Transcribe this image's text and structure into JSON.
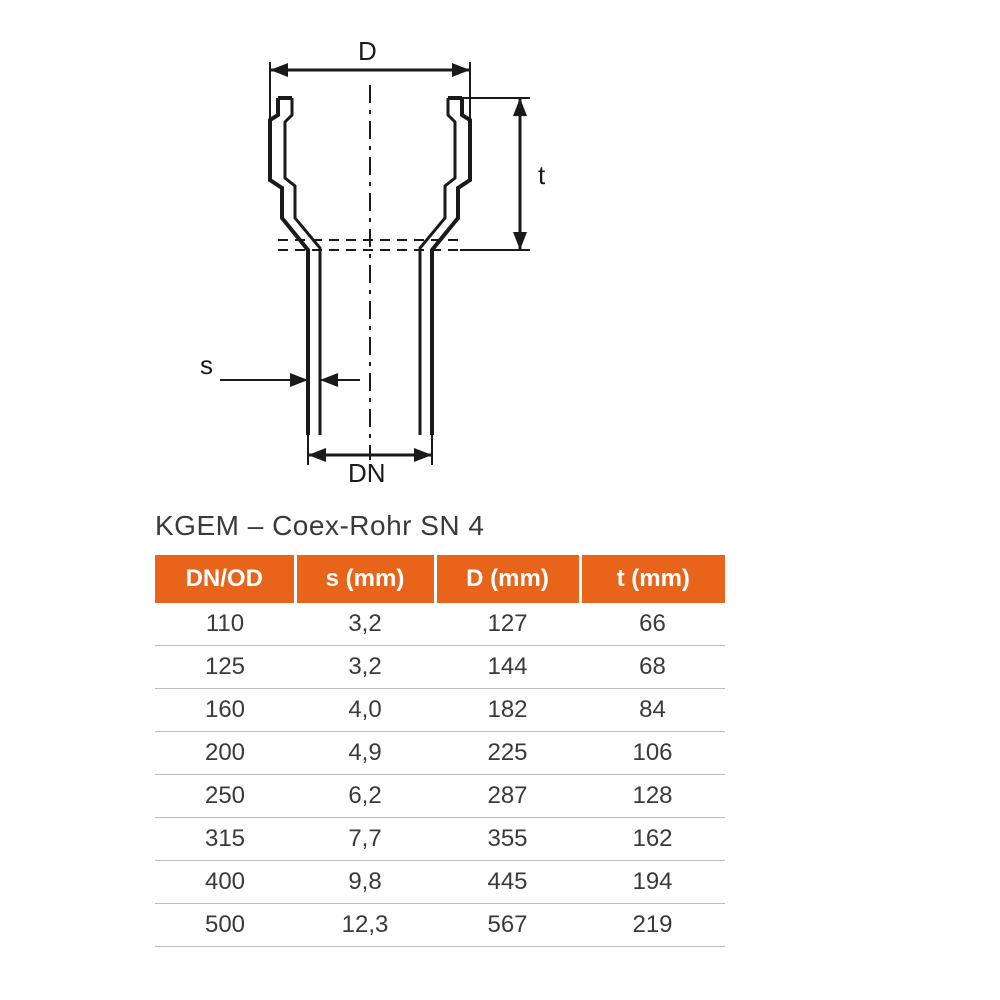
{
  "title": "KGEM – Coex-Rohr SN 4",
  "diagram": {
    "labels": {
      "D": "D",
      "t": "t",
      "s": "s",
      "DN": "DN"
    },
    "stroke_color": "#1a1a1a",
    "stroke_width_main": 4,
    "stroke_width_dim": 3,
    "dash_pattern": "12 6 4 6"
  },
  "table": {
    "header_bg": "#e8641b",
    "header_fg": "#ffffff",
    "cell_fg": "#3a3a3a",
    "border_color": "#bdbdbd",
    "columns": [
      "DN/OD",
      "s (mm)",
      "D (mm)",
      "t (mm)"
    ],
    "rows": [
      [
        "110",
        "3,2",
        "127",
        "66"
      ],
      [
        "125",
        "3,2",
        "144",
        "68"
      ],
      [
        "160",
        "4,0",
        "182",
        "84"
      ],
      [
        "200",
        "4,9",
        "225",
        "106"
      ],
      [
        "250",
        "6,2",
        "287",
        "128"
      ],
      [
        "315",
        "7,7",
        "355",
        "162"
      ],
      [
        "400",
        "9,8",
        "445",
        "194"
      ],
      [
        "500",
        "12,3",
        "567",
        "219"
      ]
    ]
  }
}
